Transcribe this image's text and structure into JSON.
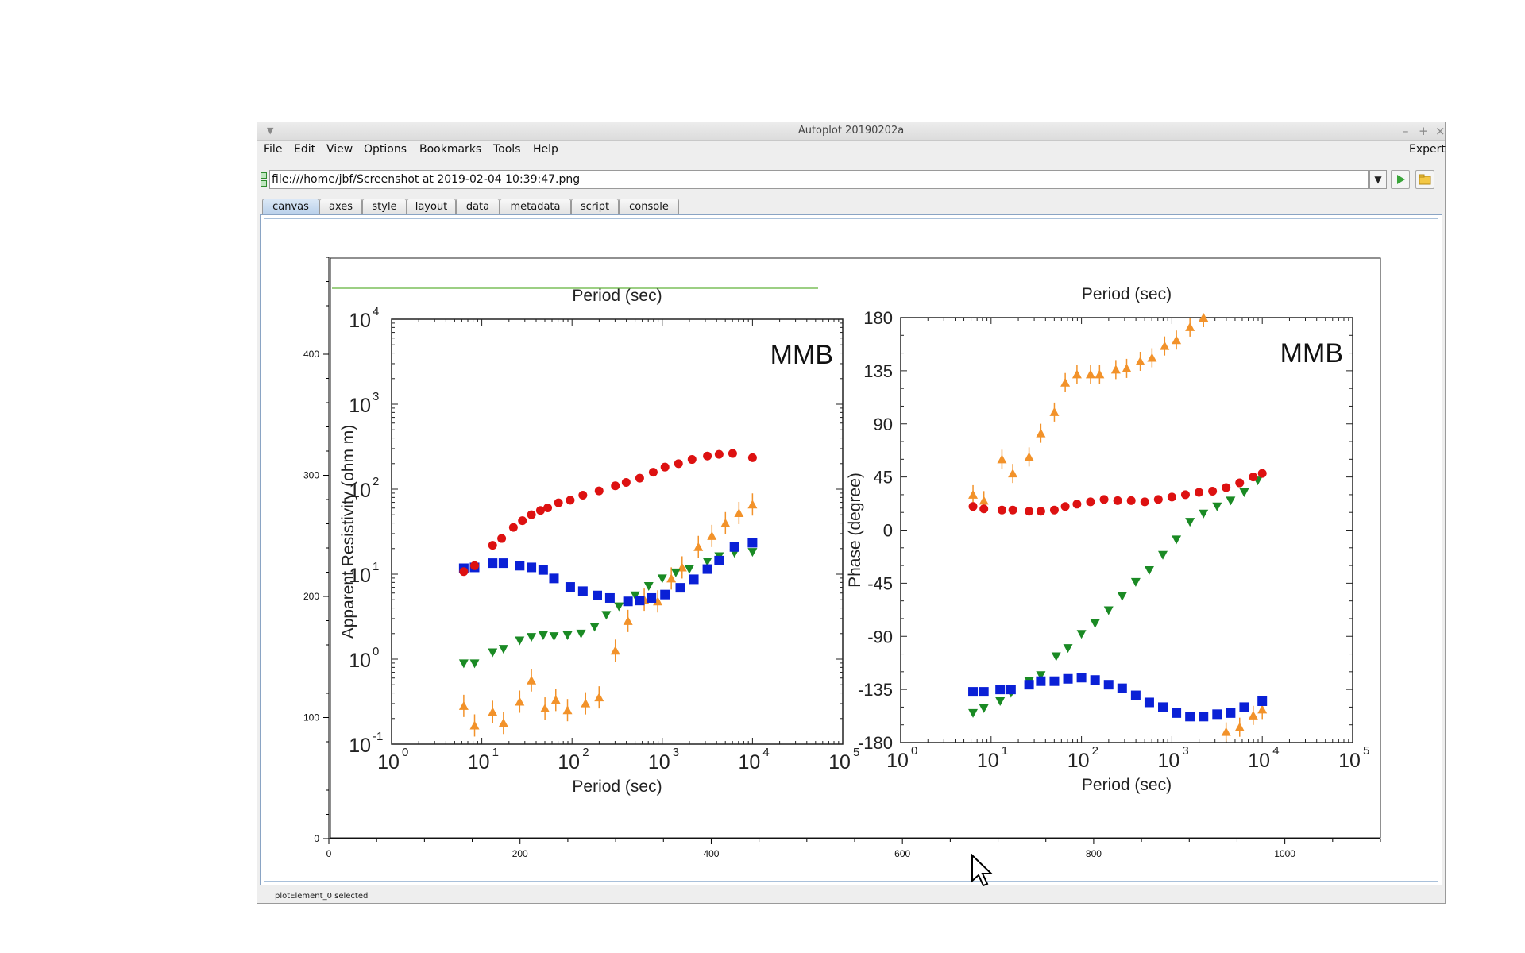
{
  "window": {
    "title": "Autoplot 20190202a",
    "controls": [
      "–",
      "+",
      "×"
    ]
  },
  "menubar": {
    "items": [
      "File",
      "Edit",
      "View",
      "Options",
      "Bookmarks",
      "Tools",
      "Help"
    ],
    "right": "Expert"
  },
  "address": {
    "url": "file:///home/jbf/Screenshot at 2019-02-04 10:39:47.png"
  },
  "tabs": [
    "canvas",
    "axes",
    "style",
    "layout",
    "data",
    "metadata",
    "script",
    "console"
  ],
  "status": "plotElement_0 selected",
  "plot": {
    "x_ticks": [
      "0",
      "200",
      "400",
      "600",
      "800",
      "1000"
    ],
    "y_ticks": [
      "0",
      "100",
      "200",
      "300",
      "400"
    ],
    "xlim": [
      0,
      1100
    ],
    "ylim": [
      0,
      480
    ]
  },
  "image": {
    "label": "MMB",
    "left": {
      "top_label": "Period (sec)",
      "xlabel": "Period (sec)",
      "ylabel": "Apparent Resistivity (ohm m)",
      "y_ticks": [
        "10",
        "10",
        "10",
        "10",
        "10",
        "10"
      ],
      "y_exps": [
        "-1",
        "0",
        "1",
        "2",
        "3",
        "4"
      ],
      "x_ticks": [
        "10",
        "10",
        "10",
        "10",
        "10",
        "10"
      ],
      "x_exps": [
        "0",
        "1",
        "2",
        "3",
        "4",
        "5"
      ],
      "red": [
        [
          0.8,
          1.03
        ],
        [
          0.92,
          1.1
        ],
        [
          1.12,
          1.34
        ],
        [
          1.22,
          1.42
        ],
        [
          1.35,
          1.55
        ],
        [
          1.45,
          1.63
        ],
        [
          1.55,
          1.7
        ],
        [
          1.65,
          1.75
        ],
        [
          1.73,
          1.78
        ],
        [
          1.85,
          1.84
        ],
        [
          1.98,
          1.87
        ],
        [
          2.12,
          1.93
        ],
        [
          2.3,
          1.98
        ],
        [
          2.48,
          2.04
        ],
        [
          2.6,
          2.08
        ],
        [
          2.75,
          2.13
        ],
        [
          2.9,
          2.2
        ],
        [
          3.03,
          2.26
        ],
        [
          3.18,
          2.3
        ],
        [
          3.33,
          2.35
        ],
        [
          3.5,
          2.39
        ],
        [
          3.63,
          2.41
        ],
        [
          3.78,
          2.42
        ],
        [
          4.0,
          2.37
        ]
      ],
      "blue": [
        [
          0.8,
          1.07
        ],
        [
          0.92,
          1.08
        ],
        [
          1.12,
          1.13
        ],
        [
          1.24,
          1.13
        ],
        [
          1.42,
          1.1
        ],
        [
          1.55,
          1.08
        ],
        [
          1.68,
          1.05
        ],
        [
          1.8,
          0.95
        ],
        [
          1.98,
          0.85
        ],
        [
          2.12,
          0.8
        ],
        [
          2.28,
          0.75
        ],
        [
          2.42,
          0.72
        ],
        [
          2.62,
          0.68
        ],
        [
          2.75,
          0.69
        ],
        [
          2.88,
          0.72
        ],
        [
          3.03,
          0.76
        ],
        [
          3.2,
          0.84
        ],
        [
          3.35,
          0.94
        ],
        [
          3.5,
          1.06
        ],
        [
          3.63,
          1.16
        ],
        [
          3.8,
          1.32
        ],
        [
          4.0,
          1.37
        ]
      ],
      "green": [
        [
          0.8,
          -0.05
        ],
        [
          0.92,
          -0.05
        ],
        [
          1.12,
          0.08
        ],
        [
          1.24,
          0.12
        ],
        [
          1.42,
          0.22
        ],
        [
          1.55,
          0.26
        ],
        [
          1.68,
          0.28
        ],
        [
          1.8,
          0.27
        ],
        [
          1.95,
          0.28
        ],
        [
          2.1,
          0.3
        ],
        [
          2.25,
          0.38
        ],
        [
          2.38,
          0.52
        ],
        [
          2.52,
          0.62
        ],
        [
          2.7,
          0.75
        ],
        [
          2.85,
          0.86
        ],
        [
          3.0,
          0.95
        ],
        [
          3.15,
          1.02
        ],
        [
          3.3,
          1.06
        ],
        [
          3.5,
          1.15
        ],
        [
          3.63,
          1.21
        ],
        [
          3.8,
          1.25
        ],
        [
          4.0,
          1.26
        ]
      ],
      "orange": [
        [
          0.8,
          -0.55
        ],
        [
          0.92,
          -0.78
        ],
        [
          1.12,
          -0.62
        ],
        [
          1.24,
          -0.75
        ],
        [
          1.42,
          -0.5
        ],
        [
          1.55,
          -0.25
        ],
        [
          1.7,
          -0.58
        ],
        [
          1.82,
          -0.48
        ],
        [
          1.95,
          -0.6
        ],
        [
          2.15,
          -0.52
        ],
        [
          2.3,
          -0.45
        ],
        [
          2.48,
          0.1
        ],
        [
          2.62,
          0.45
        ],
        [
          2.8,
          0.7
        ],
        [
          2.95,
          0.68
        ],
        [
          3.1,
          0.95
        ],
        [
          3.22,
          1.08
        ],
        [
          3.4,
          1.32
        ],
        [
          3.55,
          1.45
        ],
        [
          3.7,
          1.6
        ],
        [
          3.85,
          1.72
        ],
        [
          4.0,
          1.82
        ]
      ]
    },
    "right": {
      "top_label": "Period (sec)",
      "xlabel": "Period (sec)",
      "ylabel": "Phase (degree)",
      "y_ticks": [
        "180",
        "135",
        "90",
        "45",
        "0",
        "-45",
        "-90",
        "-135",
        "-180"
      ],
      "x_ticks": [
        "10",
        "10",
        "10",
        "10",
        "10",
        "10"
      ],
      "x_exps": [
        "0",
        "1",
        "2",
        "3",
        "4",
        "5"
      ],
      "red": [
        [
          0.8,
          20
        ],
        [
          0.92,
          18
        ],
        [
          1.12,
          17
        ],
        [
          1.24,
          17
        ],
        [
          1.42,
          16
        ],
        [
          1.55,
          16
        ],
        [
          1.7,
          17
        ],
        [
          1.82,
          20
        ],
        [
          1.95,
          22
        ],
        [
          2.1,
          24
        ],
        [
          2.25,
          26
        ],
        [
          2.4,
          25
        ],
        [
          2.55,
          25
        ],
        [
          2.7,
          24
        ],
        [
          2.85,
          26
        ],
        [
          3.0,
          28
        ],
        [
          3.15,
          30
        ],
        [
          3.3,
          32
        ],
        [
          3.45,
          33
        ],
        [
          3.6,
          36
        ],
        [
          3.75,
          40
        ],
        [
          3.9,
          45
        ],
        [
          4.0,
          48
        ]
      ],
      "blue": [
        [
          0.8,
          -137
        ],
        [
          0.92,
          -137
        ],
        [
          1.1,
          -135
        ],
        [
          1.22,
          -135
        ],
        [
          1.42,
          -131
        ],
        [
          1.55,
          -128
        ],
        [
          1.7,
          -128
        ],
        [
          1.85,
          -126
        ],
        [
          2.0,
          -125
        ],
        [
          2.15,
          -127
        ],
        [
          2.3,
          -131
        ],
        [
          2.45,
          -134
        ],
        [
          2.6,
          -140
        ],
        [
          2.75,
          -146
        ],
        [
          2.9,
          -150
        ],
        [
          3.05,
          -155
        ],
        [
          3.2,
          -158
        ],
        [
          3.35,
          -158
        ],
        [
          3.5,
          -156
        ],
        [
          3.65,
          -155
        ],
        [
          3.8,
          -150
        ],
        [
          4.0,
          -145
        ]
      ],
      "green": [
        [
          0.8,
          -155
        ],
        [
          0.92,
          -151
        ],
        [
          1.1,
          -145
        ],
        [
          1.22,
          -138
        ],
        [
          1.42,
          -128
        ],
        [
          1.55,
          -123
        ],
        [
          1.72,
          -107
        ],
        [
          1.85,
          -100
        ],
        [
          2.0,
          -88
        ],
        [
          2.15,
          -79
        ],
        [
          2.3,
          -68
        ],
        [
          2.45,
          -56
        ],
        [
          2.6,
          -44
        ],
        [
          2.75,
          -34
        ],
        [
          2.9,
          -21
        ],
        [
          3.05,
          -8
        ],
        [
          3.2,
          7
        ],
        [
          3.35,
          14
        ],
        [
          3.5,
          20
        ],
        [
          3.65,
          25
        ],
        [
          3.8,
          32
        ],
        [
          3.95,
          42
        ]
      ],
      "orange": [
        [
          0.8,
          30
        ],
        [
          0.92,
          25
        ],
        [
          1.12,
          60
        ],
        [
          1.24,
          48
        ],
        [
          1.42,
          62
        ],
        [
          1.55,
          82
        ],
        [
          1.7,
          100
        ],
        [
          1.82,
          125
        ],
        [
          1.95,
          132
        ],
        [
          2.1,
          132
        ],
        [
          2.2,
          132
        ],
        [
          2.38,
          136
        ],
        [
          2.5,
          137
        ],
        [
          2.65,
          143
        ],
        [
          2.78,
          146
        ],
        [
          2.92,
          156
        ],
        [
          3.05,
          161
        ],
        [
          3.2,
          172
        ],
        [
          3.35,
          180
        ],
        [
          3.6,
          -171
        ],
        [
          3.75,
          -167
        ],
        [
          3.9,
          -157
        ],
        [
          4.0,
          -152
        ]
      ]
    }
  }
}
